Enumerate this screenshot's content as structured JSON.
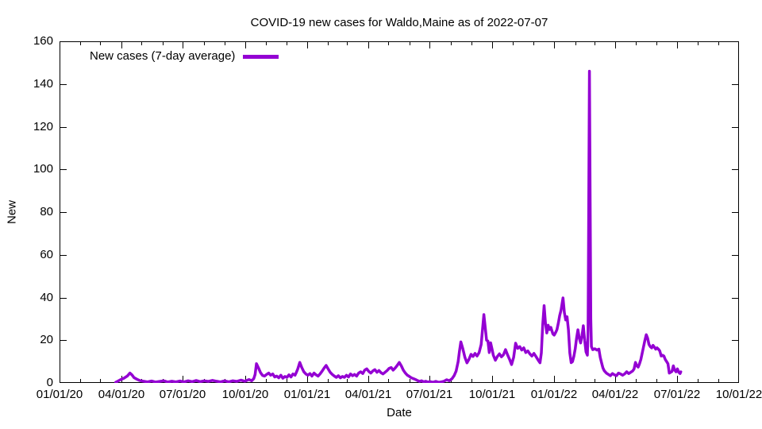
{
  "page": {
    "background": "#ffffff",
    "text_color": "#000000"
  },
  "chart_data": {
    "type": "line",
    "title": "COVID-19 new cases for Waldo,Maine as of 2022-07-07",
    "xlabel": "Date",
    "ylabel": "New",
    "grid": false,
    "legend_position": "top-left-inside",
    "legend": [
      {
        "label": "New cases (7-day average)",
        "color": "#9400d3"
      }
    ],
    "x_axis": {
      "start_date": "2020-01-01",
      "end_date": "2022-10-01",
      "major_tick_labels": [
        "01/01/20",
        "04/01/20",
        "07/01/20",
        "10/01/20",
        "01/01/21",
        "04/01/21",
        "07/01/21",
        "10/01/21",
        "01/01/22",
        "04/01/22",
        "07/01/22",
        "10/01/22"
      ],
      "minor_ticks": "monthly"
    },
    "y_axis": {
      "min": 0,
      "max": 160,
      "tick_step": 20,
      "ticks": [
        0,
        20,
        40,
        60,
        80,
        100,
        120,
        140,
        160
      ]
    },
    "series": [
      {
        "name": "New cases (7-day average)",
        "color": "#9400d3",
        "x_unit": "days_since_2020-01-01",
        "points_day_value": [
          [
            83,
            0.3
          ],
          [
            86,
            0.8
          ],
          [
            90,
            1.5
          ],
          [
            95,
            2.2
          ],
          [
            100,
            3.2
          ],
          [
            104,
            4.6
          ],
          [
            107,
            3.8
          ],
          [
            110,
            2.5
          ],
          [
            114,
            1.8
          ],
          [
            118,
            1.2
          ],
          [
            124,
            0.8
          ],
          [
            130,
            0.5
          ],
          [
            136,
            0.9
          ],
          [
            142,
            0.4
          ],
          [
            148,
            0.7
          ],
          [
            154,
            1.0
          ],
          [
            160,
            0.4
          ],
          [
            166,
            0.8
          ],
          [
            172,
            0.5
          ],
          [
            178,
            0.9
          ],
          [
            184,
            0.5
          ],
          [
            190,
            1.0
          ],
          [
            196,
            0.6
          ],
          [
            202,
            1.1
          ],
          [
            208,
            0.6
          ],
          [
            214,
            1.0
          ],
          [
            220,
            0.7
          ],
          [
            226,
            1.2
          ],
          [
            232,
            0.8
          ],
          [
            238,
            0.5
          ],
          [
            244,
            1.0
          ],
          [
            250,
            0.5
          ],
          [
            256,
            1.0
          ],
          [
            262,
            0.7
          ],
          [
            268,
            1.3
          ],
          [
            274,
            0.8
          ],
          [
            280,
            1.6
          ],
          [
            284,
            1.0
          ],
          [
            287,
            2.0
          ],
          [
            289,
            4.0
          ],
          [
            291,
            9.0
          ],
          [
            294,
            7.0
          ],
          [
            297,
            4.8
          ],
          [
            300,
            3.5
          ],
          [
            303,
            3.2
          ],
          [
            306,
            4.0
          ],
          [
            309,
            4.6
          ],
          [
            312,
            3.6
          ],
          [
            315,
            4.2
          ],
          [
            318,
            2.8
          ],
          [
            321,
            3.2
          ],
          [
            324,
            2.4
          ],
          [
            327,
            3.6
          ],
          [
            330,
            2.2
          ],
          [
            333,
            3.0
          ],
          [
            336,
            2.6
          ],
          [
            339,
            3.8
          ],
          [
            342,
            2.8
          ],
          [
            345,
            4.2
          ],
          [
            348,
            3.6
          ],
          [
            350,
            5.0
          ],
          [
            352,
            6.5
          ],
          [
            355,
            9.6
          ],
          [
            358,
            7.2
          ],
          [
            361,
            5.2
          ],
          [
            364,
            4.2
          ],
          [
            367,
            3.6
          ],
          [
            370,
            4.4
          ],
          [
            373,
            3.2
          ],
          [
            376,
            4.6
          ],
          [
            379,
            3.8
          ],
          [
            382,
            3.2
          ],
          [
            385,
            4.2
          ],
          [
            388,
            5.5
          ],
          [
            391,
            7.0
          ],
          [
            394,
            8.2
          ],
          [
            397,
            6.5
          ],
          [
            400,
            5.0
          ],
          [
            403,
            4.0
          ],
          [
            406,
            3.2
          ],
          [
            409,
            2.6
          ],
          [
            412,
            3.4
          ],
          [
            415,
            2.4
          ],
          [
            418,
            3.0
          ],
          [
            421,
            2.6
          ],
          [
            424,
            3.6
          ],
          [
            427,
            2.8
          ],
          [
            430,
            4.2
          ],
          [
            433,
            3.4
          ],
          [
            436,
            4.0
          ],
          [
            439,
            3.2
          ],
          [
            442,
            4.6
          ],
          [
            445,
            5.2
          ],
          [
            448,
            4.4
          ],
          [
            451,
            6.0
          ],
          [
            454,
            6.6
          ],
          [
            457,
            5.4
          ],
          [
            460,
            4.6
          ],
          [
            463,
            5.6
          ],
          [
            466,
            6.2
          ],
          [
            469,
            5.0
          ],
          [
            472,
            5.8
          ],
          [
            475,
            4.8
          ],
          [
            478,
            4.2
          ],
          [
            481,
            5.0
          ],
          [
            484,
            5.8
          ],
          [
            487,
            6.8
          ],
          [
            490,
            7.2
          ],
          [
            493,
            6.0
          ],
          [
            496,
            7.0
          ],
          [
            499,
            8.2
          ],
          [
            502,
            9.6
          ],
          [
            505,
            8.0
          ],
          [
            508,
            6.0
          ],
          [
            511,
            4.6
          ],
          [
            514,
            3.6
          ],
          [
            517,
            3.0
          ],
          [
            520,
            2.4
          ],
          [
            523,
            2.0
          ],
          [
            526,
            1.6
          ],
          [
            529,
            1.1
          ],
          [
            532,
            0.7
          ],
          [
            535,
            1.0
          ],
          [
            538,
            0.5
          ],
          [
            541,
            0.8
          ],
          [
            544,
            0.4
          ],
          [
            548,
            0.6
          ],
          [
            552,
            0.3
          ],
          [
            556,
            0.7
          ],
          [
            560,
            0.3
          ],
          [
            564,
            0.5
          ],
          [
            568,
            0.8
          ],
          [
            572,
            1.5
          ],
          [
            576,
            1.0
          ],
          [
            580,
            2.0
          ],
          [
            583,
            3.4
          ],
          [
            586,
            5.5
          ],
          [
            589,
            10.0
          ],
          [
            591,
            15.0
          ],
          [
            593,
            19.2
          ],
          [
            596,
            16.0
          ],
          [
            599,
            12.0
          ],
          [
            602,
            9.4
          ],
          [
            605,
            11.0
          ],
          [
            608,
            13.4
          ],
          [
            611,
            12.4
          ],
          [
            614,
            13.8
          ],
          [
            617,
            12.6
          ],
          [
            620,
            14.2
          ],
          [
            623,
            18.0
          ],
          [
            625,
            25.0
          ],
          [
            627,
            32.0
          ],
          [
            629,
            26.0
          ],
          [
            631,
            20.0
          ],
          [
            633,
            19.6
          ],
          [
            635,
            14.2
          ],
          [
            637,
            18.8
          ],
          [
            639,
            16.0
          ],
          [
            641,
            13.0
          ],
          [
            644,
            10.6
          ],
          [
            647,
            12.4
          ],
          [
            650,
            13.6
          ],
          [
            653,
            12.2
          ],
          [
            656,
            13.2
          ],
          [
            659,
            15.6
          ],
          [
            662,
            13.2
          ],
          [
            665,
            11.0
          ],
          [
            668,
            8.6
          ],
          [
            671,
            12.0
          ],
          [
            674,
            18.6
          ],
          [
            677,
            16.2
          ],
          [
            680,
            17.0
          ],
          [
            683,
            15.4
          ],
          [
            686,
            16.4
          ],
          [
            689,
            14.2
          ],
          [
            692,
            15.0
          ],
          [
            695,
            13.6
          ],
          [
            698,
            12.6
          ],
          [
            701,
            13.8
          ],
          [
            704,
            12.4
          ],
          [
            707,
            10.8
          ],
          [
            710,
            9.4
          ],
          [
            712,
            14.0
          ],
          [
            714,
            27.0
          ],
          [
            716,
            36.2
          ],
          [
            718,
            28.0
          ],
          [
            720,
            23.4
          ],
          [
            722,
            27.0
          ],
          [
            724,
            25.0
          ],
          [
            726,
            26.0
          ],
          [
            729,
            23.0
          ],
          [
            731,
            22.4
          ],
          [
            733,
            23.5
          ],
          [
            735,
            25.0
          ],
          [
            737,
            28.0
          ],
          [
            739,
            31.5
          ],
          [
            741,
            34.0
          ],
          [
            744,
            39.8
          ],
          [
            746,
            33.0
          ],
          [
            748,
            29.5
          ],
          [
            750,
            31.0
          ],
          [
            752,
            25.0
          ],
          [
            754,
            14.0
          ],
          [
            756,
            9.5
          ],
          [
            758,
            10.0
          ],
          [
            760,
            12.5
          ],
          [
            762,
            16.0
          ],
          [
            764,
            21.0
          ],
          [
            766,
            24.9
          ],
          [
            768,
            21.0
          ],
          [
            770,
            18.7
          ],
          [
            772,
            22.0
          ],
          [
            774,
            26.8
          ],
          [
            776,
            20.0
          ],
          [
            778,
            14.5
          ],
          [
            780,
            13.0
          ],
          [
            781,
            25.0
          ],
          [
            783,
            146.0
          ],
          [
            785,
            30.0
          ],
          [
            786,
            17.0
          ],
          [
            788,
            15.6
          ],
          [
            791,
            16.0
          ],
          [
            794,
            15.4
          ],
          [
            797,
            15.8
          ],
          [
            799,
            12.0
          ],
          [
            801,
            9.4
          ],
          [
            803,
            7.0
          ],
          [
            805,
            5.7
          ],
          [
            808,
            4.6
          ],
          [
            811,
            4.0
          ],
          [
            814,
            3.4
          ],
          [
            817,
            4.4
          ],
          [
            820,
            3.8
          ],
          [
            823,
            3.4
          ],
          [
            826,
            4.6
          ],
          [
            829,
            4.2
          ],
          [
            832,
            3.6
          ],
          [
            835,
            4.2
          ],
          [
            838,
            5.2
          ],
          [
            841,
            4.4
          ],
          [
            844,
            5.0
          ],
          [
            847,
            5.6
          ],
          [
            849,
            6.5
          ],
          [
            851,
            9.6
          ],
          [
            853,
            8.0
          ],
          [
            855,
            7.4
          ],
          [
            857,
            9.0
          ],
          [
            859,
            11.0
          ],
          [
            861,
            14.0
          ],
          [
            863,
            17.0
          ],
          [
            865,
            20.0
          ],
          [
            867,
            22.6
          ],
          [
            869,
            21.0
          ],
          [
            871,
            18.0
          ],
          [
            873,
            17.0
          ],
          [
            875,
            16.4
          ],
          [
            877,
            17.6
          ],
          [
            879,
            16.8
          ],
          [
            881,
            15.8
          ],
          [
            883,
            16.4
          ],
          [
            885,
            15.8
          ],
          [
            887,
            15.0
          ],
          [
            889,
            12.6
          ],
          [
            891,
            13.0
          ],
          [
            893,
            12.6
          ],
          [
            895,
            11.0
          ],
          [
            897,
            10.0
          ],
          [
            899,
            9.0
          ],
          [
            901,
            4.6
          ],
          [
            903,
            5.0
          ],
          [
            905,
            5.4
          ],
          [
            907,
            8.0
          ],
          [
            909,
            6.0
          ],
          [
            911,
            5.2
          ],
          [
            913,
            6.6
          ],
          [
            915,
            5.0
          ],
          [
            917,
            4.4
          ],
          [
            918,
            5.2
          ]
        ]
      }
    ]
  }
}
